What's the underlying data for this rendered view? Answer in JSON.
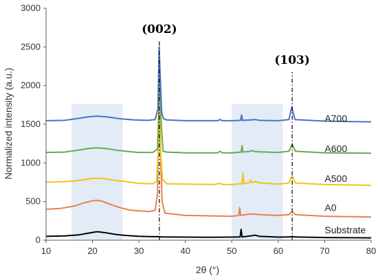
{
  "chart_data": {
    "type": "line",
    "xlabel": "2θ (°)",
    "ylabel": "Normalized intensity (a.u.)",
    "xlim": [
      10,
      80
    ],
    "ylim": [
      0,
      3000
    ],
    "x_ticks": [
      10,
      20,
      30,
      40,
      50,
      60,
      70,
      80
    ],
    "y_ticks": [
      0,
      500,
      1000,
      1500,
      2000,
      2500,
      3000
    ],
    "grid": false,
    "shaded_regions": [
      {
        "x": [
          15.5,
          26.5
        ],
        "y": [
          0,
          1760
        ],
        "color": "#e3ebf7"
      },
      {
        "x": [
          50,
          61
        ],
        "y": [
          0,
          1760
        ],
        "color": "#e3ebf7"
      }
    ],
    "reference_lines": [
      {
        "x": 34.4,
        "label": "(002)",
        "label_y": 2680
      },
      {
        "x": 63.0,
        "label": "(103)",
        "label_y": 2280
      }
    ],
    "series": [
      {
        "name": "Substrate",
        "color": "#000000",
        "label_x": 70,
        "label_y": 135,
        "points": [
          [
            10,
            50
          ],
          [
            14,
            55
          ],
          [
            17,
            68
          ],
          [
            19,
            90
          ],
          [
            21,
            110
          ],
          [
            23,
            95
          ],
          [
            25,
            75
          ],
          [
            27,
            62
          ],
          [
            30,
            50
          ],
          [
            33,
            45
          ],
          [
            34,
            47
          ],
          [
            35,
            42
          ],
          [
            40,
            40
          ],
          [
            45,
            38
          ],
          [
            50,
            40
          ],
          [
            51.8,
            42
          ],
          [
            52.0,
            140
          ],
          [
            52.2,
            42
          ],
          [
            54,
            55
          ],
          [
            55,
            65
          ],
          [
            56,
            50
          ],
          [
            60,
            40
          ],
          [
            62.5,
            42
          ],
          [
            63,
            50
          ],
          [
            63.5,
            42
          ],
          [
            70,
            35
          ],
          [
            80,
            30
          ]
        ]
      },
      {
        "name": "A0",
        "color": "#e8804a",
        "label_x": 70,
        "label_y": 420,
        "points": [
          [
            10,
            400
          ],
          [
            13,
            410
          ],
          [
            16,
            440
          ],
          [
            18,
            480
          ],
          [
            20,
            510
          ],
          [
            21,
            515
          ],
          [
            22,
            505
          ],
          [
            24,
            460
          ],
          [
            26,
            420
          ],
          [
            28,
            390
          ],
          [
            32,
            370
          ],
          [
            33.5,
            385
          ],
          [
            34.0,
            600
          ],
          [
            34.3,
            1850
          ],
          [
            34.6,
            1200
          ],
          [
            35.0,
            500
          ],
          [
            35.6,
            350
          ],
          [
            40,
            320
          ],
          [
            45,
            315
          ],
          [
            50,
            310
          ],
          [
            51.5,
            320
          ],
          [
            51.7,
            420
          ],
          [
            51.9,
            320
          ],
          [
            54,
            340
          ],
          [
            56,
            330
          ],
          [
            60,
            320
          ],
          [
            62.3,
            330
          ],
          [
            63,
            370
          ],
          [
            63.7,
            330
          ],
          [
            70,
            310
          ],
          [
            80,
            300
          ]
        ]
      },
      {
        "name": "A500",
        "color": "#f2c318",
        "label_x": 70,
        "label_y": 800,
        "points": [
          [
            10,
            750
          ],
          [
            15,
            760
          ],
          [
            18,
            780
          ],
          [
            20,
            800
          ],
          [
            22,
            800
          ],
          [
            24,
            780
          ],
          [
            27,
            760
          ],
          [
            30,
            735
          ],
          [
            33,
            730
          ],
          [
            33.8,
            760
          ],
          [
            34.2,
            1200
          ],
          [
            34.45,
            1700
          ],
          [
            34.7,
            1100
          ],
          [
            35.1,
            780
          ],
          [
            36,
            730
          ],
          [
            40,
            725
          ],
          [
            46,
            720
          ],
          [
            47.5,
            735
          ],
          [
            48,
            720
          ],
          [
            50,
            720
          ],
          [
            52.2,
            730
          ],
          [
            52.4,
            870
          ],
          [
            52.6,
            730
          ],
          [
            53.8,
            745
          ],
          [
            54,
            780
          ],
          [
            54.3,
            745
          ],
          [
            55,
            760
          ],
          [
            56,
            740
          ],
          [
            60,
            725
          ],
          [
            62.3,
            740
          ],
          [
            63,
            830
          ],
          [
            63.7,
            740
          ],
          [
            70,
            720
          ],
          [
            80,
            710
          ]
        ]
      },
      {
        "name": "A600",
        "color": "#6aa84f",
        "label_x": 70,
        "label_y": 1185,
        "points": [
          [
            10,
            1135
          ],
          [
            14,
            1140
          ],
          [
            17,
            1165
          ],
          [
            19,
            1185
          ],
          [
            21,
            1195
          ],
          [
            23,
            1185
          ],
          [
            25,
            1165
          ],
          [
            28,
            1145
          ],
          [
            30,
            1135
          ],
          [
            33,
            1135
          ],
          [
            34.0,
            1180
          ],
          [
            34.3,
            1700
          ],
          [
            34.55,
            2150
          ],
          [
            34.8,
            1500
          ],
          [
            35.2,
            1150
          ],
          [
            36,
            1140
          ],
          [
            40,
            1130
          ],
          [
            47,
            1130
          ],
          [
            47.5,
            1150
          ],
          [
            48,
            1130
          ],
          [
            50,
            1130
          ],
          [
            52.0,
            1140
          ],
          [
            52.2,
            1220
          ],
          [
            52.4,
            1140
          ],
          [
            54,
            1150
          ],
          [
            54.5,
            1160
          ],
          [
            55,
            1145
          ],
          [
            60,
            1135
          ],
          [
            62.3,
            1150
          ],
          [
            63,
            1240
          ],
          [
            63.7,
            1150
          ],
          [
            70,
            1130
          ],
          [
            80,
            1125
          ]
        ]
      },
      {
        "name": "A700",
        "color": "#4a72c4",
        "label_x": 70,
        "label_y": 1575,
        "points": [
          [
            10,
            1545
          ],
          [
            14,
            1550
          ],
          [
            17,
            1575
          ],
          [
            19,
            1595
          ],
          [
            21,
            1605
          ],
          [
            23,
            1595
          ],
          [
            26,
            1570
          ],
          [
            29,
            1555
          ],
          [
            32,
            1550
          ],
          [
            33.5,
            1560
          ],
          [
            34.1,
            1700
          ],
          [
            34.35,
            2500
          ],
          [
            34.6,
            2100
          ],
          [
            34.9,
            1650
          ],
          [
            35.3,
            1570
          ],
          [
            36,
            1555
          ],
          [
            40,
            1545
          ],
          [
            47,
            1545
          ],
          [
            47.5,
            1560
          ],
          [
            48,
            1545
          ],
          [
            50,
            1545
          ],
          [
            51.9,
            1550
          ],
          [
            52.1,
            1620
          ],
          [
            52.3,
            1550
          ],
          [
            54,
            1555
          ],
          [
            55,
            1560
          ],
          [
            56,
            1550
          ],
          [
            60,
            1545
          ],
          [
            62.3,
            1560
          ],
          [
            62.9,
            1720
          ],
          [
            63.6,
            1560
          ],
          [
            70,
            1540
          ],
          [
            80,
            1530
          ]
        ]
      }
    ]
  }
}
